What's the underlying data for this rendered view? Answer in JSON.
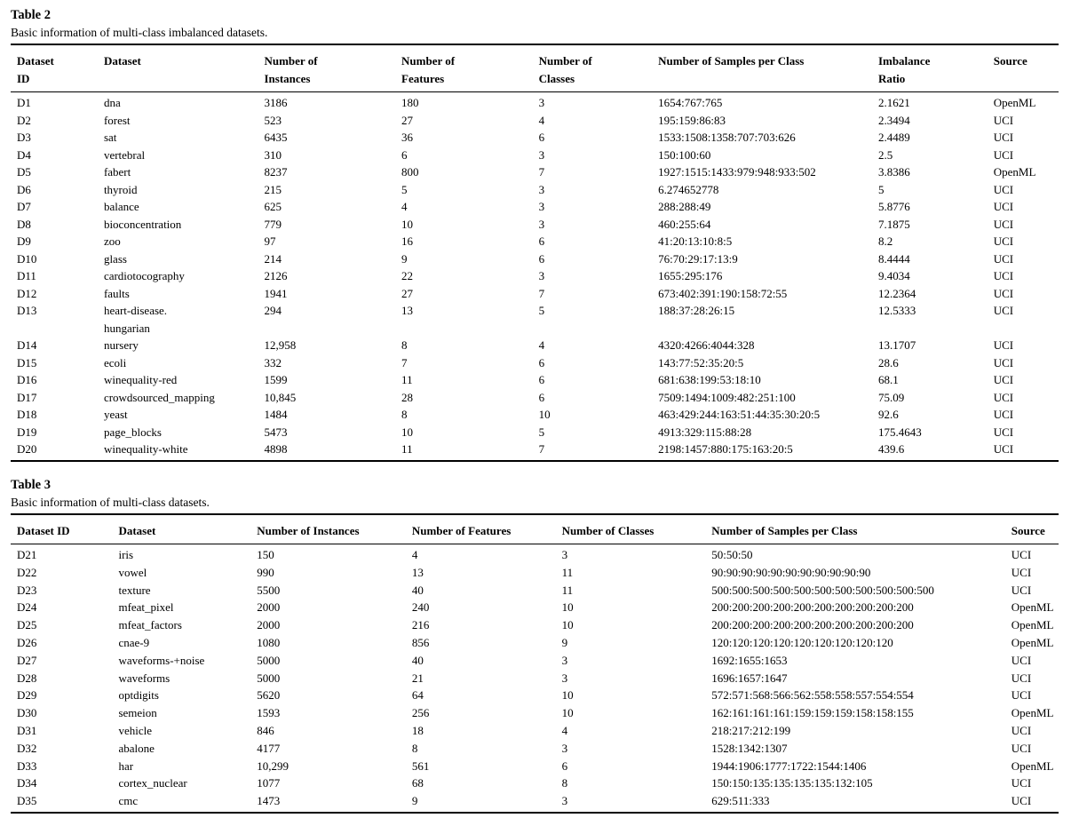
{
  "table2": {
    "label": "Table 2",
    "caption": "Basic information of multi-class imbalanced datasets.",
    "columns": [
      "Dataset\nID",
      "Dataset",
      "Number of\nInstances",
      "Number of\nFeatures",
      "Number of\nClasses",
      "Number of Samples per Class",
      "Imbalance\nRatio",
      "Source"
    ],
    "rows": [
      [
        "D1",
        "dna",
        "3186",
        "180",
        "3",
        "1654:767:765",
        "2.1621",
        "OpenML"
      ],
      [
        "D2",
        "forest",
        "523",
        "27",
        "4",
        "195:159:86:83",
        "2.3494",
        "UCI"
      ],
      [
        "D3",
        "sat",
        "6435",
        "36",
        "6",
        "1533:1508:1358:707:703:626",
        "2.4489",
        "UCI"
      ],
      [
        "D4",
        "vertebral",
        "310",
        "6",
        "3",
        "150:100:60",
        "2.5",
        "UCI"
      ],
      [
        "D5",
        "fabert",
        "8237",
        "800",
        "7",
        "1927:1515:1433:979:948:933:502",
        "3.8386",
        "OpenML"
      ],
      [
        "D6",
        "thyroid",
        "215",
        "5",
        "3",
        "6.274652778",
        "5",
        "UCI"
      ],
      [
        "D7",
        "balance",
        "625",
        "4",
        "3",
        "288:288:49",
        "5.8776",
        "UCI"
      ],
      [
        "D8",
        "bioconcentration",
        "779",
        "10",
        "3",
        "460:255:64",
        "7.1875",
        "UCI"
      ],
      [
        "D9",
        "zoo",
        "97",
        "16",
        "6",
        "41:20:13:10:8:5",
        "8.2",
        "UCI"
      ],
      [
        "D10",
        "glass",
        "214",
        "9",
        "6",
        "76:70:29:17:13:9",
        "8.4444",
        "UCI"
      ],
      [
        "D11",
        "cardiotocography",
        "2126",
        "22",
        "3",
        "1655:295:176",
        "9.4034",
        "UCI"
      ],
      [
        "D12",
        "faults",
        "1941",
        "27",
        "7",
        "673:402:391:190:158:72:55",
        "12.2364",
        "UCI"
      ],
      [
        "D13",
        "heart-disease.\nhungarian",
        "294",
        "13",
        "5",
        "188:37:28:26:15",
        "12.5333",
        "UCI"
      ],
      [
        "D14",
        "nursery",
        "12,958",
        "8",
        "4",
        "4320:4266:4044:328",
        "13.1707",
        "UCI"
      ],
      [
        "D15",
        "ecoli",
        "332",
        "7",
        "6",
        "143:77:52:35:20:5",
        "28.6",
        "UCI"
      ],
      [
        "D16",
        "winequality-red",
        "1599",
        "11",
        "6",
        "681:638:199:53:18:10",
        "68.1",
        "UCI"
      ],
      [
        "D17",
        "crowdsourced_mapping",
        "10,845",
        "28",
        "6",
        "7509:1494:1009:482:251:100",
        "75.09",
        "UCI"
      ],
      [
        "D18",
        "yeast",
        "1484",
        "8",
        "10",
        "463:429:244:163:51:44:35:30:20:5",
        "92.6",
        "UCI"
      ],
      [
        "D19",
        "page_blocks",
        "5473",
        "10",
        "5",
        "4913:329:115:88:28",
        "175.4643",
        "UCI"
      ],
      [
        "D20",
        "winequality-white",
        "4898",
        "11",
        "7",
        "2198:1457:880:175:163:20:5",
        "439.6",
        "UCI"
      ]
    ]
  },
  "table3": {
    "label": "Table 3",
    "caption": "Basic information of multi-class datasets.",
    "columns": [
      "Dataset ID",
      "Dataset",
      "Number of Instances",
      "Number of Features",
      "Number of Classes",
      "Number of Samples per Class",
      "Source"
    ],
    "rows": [
      [
        "D21",
        "iris",
        "150",
        "4",
        "3",
        "50:50:50",
        "UCI"
      ],
      [
        "D22",
        "vowel",
        "990",
        "13",
        "11",
        "90:90:90:90:90:90:90:90:90:90:90",
        "UCI"
      ],
      [
        "D23",
        "texture",
        "5500",
        "40",
        "11",
        "500:500:500:500:500:500:500:500:500:500:500",
        "UCI"
      ],
      [
        "D24",
        "mfeat_pixel",
        "2000",
        "240",
        "10",
        "200:200:200:200:200:200:200:200:200:200",
        "OpenML"
      ],
      [
        "D25",
        "mfeat_factors",
        "2000",
        "216",
        "10",
        "200:200:200:200:200:200:200:200:200:200",
        "OpenML"
      ],
      [
        "D26",
        "cnae-9",
        "1080",
        "856",
        "9",
        "120:120:120:120:120:120:120:120:120",
        "OpenML"
      ],
      [
        "D27",
        "waveforms-+noise",
        "5000",
        "40",
        "3",
        "1692:1655:1653",
        "UCI"
      ],
      [
        "D28",
        "waveforms",
        "5000",
        "21",
        "3",
        "1696:1657:1647",
        "UCI"
      ],
      [
        "D29",
        "optdigits",
        "5620",
        "64",
        "10",
        "572:571:568:566:562:558:558:557:554:554",
        "UCI"
      ],
      [
        "D30",
        "semeion",
        "1593",
        "256",
        "10",
        "162:161:161:161:159:159:159:158:158:155",
        "OpenML"
      ],
      [
        "D31",
        "vehicle",
        "846",
        "18",
        "4",
        "218:217:212:199",
        "UCI"
      ],
      [
        "D32",
        "abalone",
        "4177",
        "8",
        "3",
        "1528:1342:1307",
        "UCI"
      ],
      [
        "D33",
        "har",
        "10,299",
        "561",
        "6",
        "1944:1906:1777:1722:1544:1406",
        "OpenML"
      ],
      [
        "D34",
        "cortex_nuclear",
        "1077",
        "68",
        "8",
        "150:150:135:135:135:135:132:105",
        "UCI"
      ],
      [
        "D35",
        "cmc",
        "1473",
        "9",
        "3",
        "629:511:333",
        "UCI"
      ]
    ]
  }
}
